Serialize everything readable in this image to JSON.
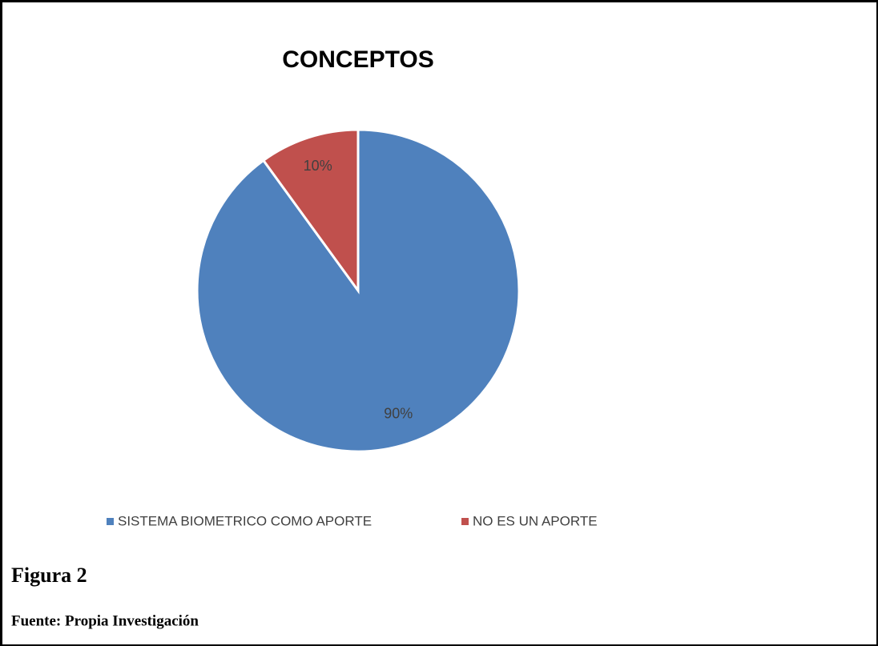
{
  "chart_data": {
    "type": "pie",
    "title": "CONCEPTOS",
    "categories": [
      "SISTEMA BIOMETRICO COMO APORTE",
      "NO ES UN APORTE"
    ],
    "values": [
      90,
      10
    ],
    "value_labels": [
      "90%",
      "10%"
    ],
    "colors": [
      "#4f81bd",
      "#c0504d"
    ],
    "legend": "bottom"
  },
  "caption": {
    "figure": "Figura 2",
    "source": "Fuente: Propia Investigación"
  }
}
